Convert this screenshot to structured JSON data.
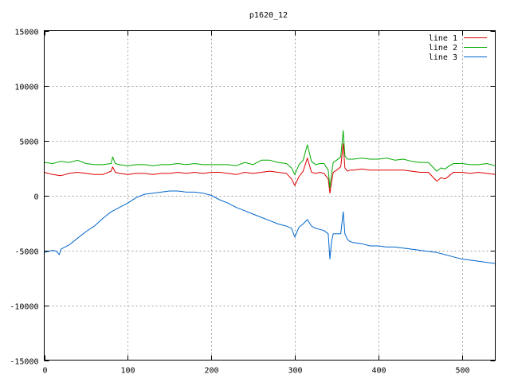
{
  "chart_data": {
    "type": "line",
    "title": "p1620_12",
    "xlabel": "",
    "ylabel": "",
    "xlim": [
      0,
      540
    ],
    "ylim": [
      -15000,
      15000
    ],
    "x_ticks": [
      0,
      100,
      200,
      300,
      400,
      500
    ],
    "y_ticks": [
      -15000,
      -10000,
      -5000,
      0,
      5000,
      10000,
      15000
    ],
    "grid": true,
    "legend_position": "top-right",
    "series": [
      {
        "name": "line 1",
        "color": "#dd0000",
        "x": [
          0,
          10,
          20,
          30,
          40,
          50,
          60,
          70,
          80,
          82,
          85,
          90,
          100,
          110,
          120,
          130,
          140,
          150,
          160,
          170,
          180,
          190,
          200,
          210,
          220,
          230,
          240,
          250,
          260,
          270,
          280,
          290,
          296,
          300,
          305,
          310,
          315,
          320,
          325,
          330,
          335,
          340,
          342,
          344,
          346,
          350,
          355,
          358,
          360,
          363,
          366,
          370,
          380,
          390,
          400,
          410,
          420,
          430,
          440,
          450,
          460,
          470,
          475,
          480,
          485,
          490,
          500,
          510,
          520,
          530,
          540
        ],
        "y": [
          2100,
          1900,
          1800,
          2000,
          2100,
          2000,
          1900,
          1900,
          2200,
          2600,
          2100,
          2000,
          1900,
          2000,
          2000,
          1900,
          2000,
          2000,
          2100,
          2000,
          2100,
          2000,
          2100,
          2100,
          2000,
          1900,
          2100,
          2000,
          2100,
          2200,
          2100,
          2000,
          1500,
          900,
          1700,
          2200,
          3400,
          2100,
          2000,
          2100,
          2000,
          1500,
          200,
          1200,
          2100,
          2300,
          2600,
          4700,
          2500,
          2200,
          2300,
          2300,
          2400,
          2300,
          2300,
          2300,
          2300,
          2300,
          2200,
          2100,
          2100,
          1300,
          1600,
          1500,
          1800,
          2100,
          2100,
          2000,
          2100,
          2000,
          1900
        ]
      },
      {
        "name": "line 2",
        "color": "#00aa00",
        "x": [
          0,
          10,
          20,
          30,
          40,
          50,
          60,
          70,
          80,
          82,
          85,
          90,
          100,
          110,
          120,
          130,
          140,
          150,
          160,
          170,
          180,
          190,
          200,
          210,
          220,
          230,
          240,
          250,
          260,
          270,
          280,
          290,
          296,
          300,
          305,
          310,
          315,
          320,
          325,
          330,
          335,
          340,
          342,
          344,
          346,
          350,
          355,
          358,
          360,
          363,
          366,
          370,
          380,
          390,
          400,
          410,
          420,
          430,
          440,
          450,
          460,
          470,
          475,
          480,
          485,
          490,
          500,
          510,
          520,
          530,
          540
        ],
        "y": [
          3000,
          2900,
          3100,
          3000,
          3200,
          2900,
          2800,
          2800,
          2900,
          3500,
          2900,
          2800,
          2700,
          2800,
          2800,
          2700,
          2800,
          2800,
          2900,
          2800,
          2900,
          2800,
          2800,
          2800,
          2800,
          2700,
          3000,
          2800,
          3200,
          3200,
          3000,
          2900,
          2500,
          1900,
          2800,
          3200,
          4600,
          3100,
          2800,
          2900,
          2900,
          2300,
          700,
          2000,
          3000,
          3200,
          3500,
          5900,
          3600,
          3300,
          3300,
          3300,
          3400,
          3300,
          3300,
          3400,
          3200,
          3300,
          3100,
          3000,
          3000,
          2200,
          2500,
          2400,
          2700,
          2900,
          2900,
          2800,
          2800,
          2900,
          2700
        ]
      },
      {
        "name": "line 3",
        "color": "#0066cc",
        "x": [
          0,
          10,
          15,
          18,
          20,
          30,
          40,
          50,
          60,
          70,
          80,
          90,
          100,
          110,
          120,
          130,
          140,
          150,
          160,
          170,
          180,
          190,
          200,
          210,
          220,
          230,
          240,
          250,
          260,
          270,
          280,
          290,
          296,
          300,
          305,
          310,
          315,
          320,
          325,
          330,
          335,
          340,
          342,
          344,
          346,
          350,
          355,
          358,
          360,
          363,
          366,
          370,
          380,
          390,
          400,
          410,
          420,
          430,
          440,
          450,
          460,
          470,
          480,
          490,
          500,
          510,
          520,
          530,
          540
        ],
        "y": [
          -5200,
          -5000,
          -5100,
          -5400,
          -4900,
          -4500,
          -3900,
          -3300,
          -2800,
          -2100,
          -1500,
          -1100,
          -700,
          -200,
          100,
          200,
          300,
          400,
          400,
          300,
          300,
          200,
          0,
          -400,
          -700,
          -1100,
          -1400,
          -1700,
          -2000,
          -2300,
          -2600,
          -2800,
          -3000,
          -3800,
          -2900,
          -2600,
          -2200,
          -2800,
          -3000,
          -3100,
          -3200,
          -3500,
          -5800,
          -4200,
          -3500,
          -3500,
          -3500,
          -1500,
          -3500,
          -4000,
          -4200,
          -4300,
          -4400,
          -4600,
          -4600,
          -4700,
          -4700,
          -4800,
          -4900,
          -5000,
          -5100,
          -5200,
          -5400,
          -5600,
          -5800,
          -5900,
          -6000,
          -6100,
          -6200
        ]
      }
    ]
  }
}
